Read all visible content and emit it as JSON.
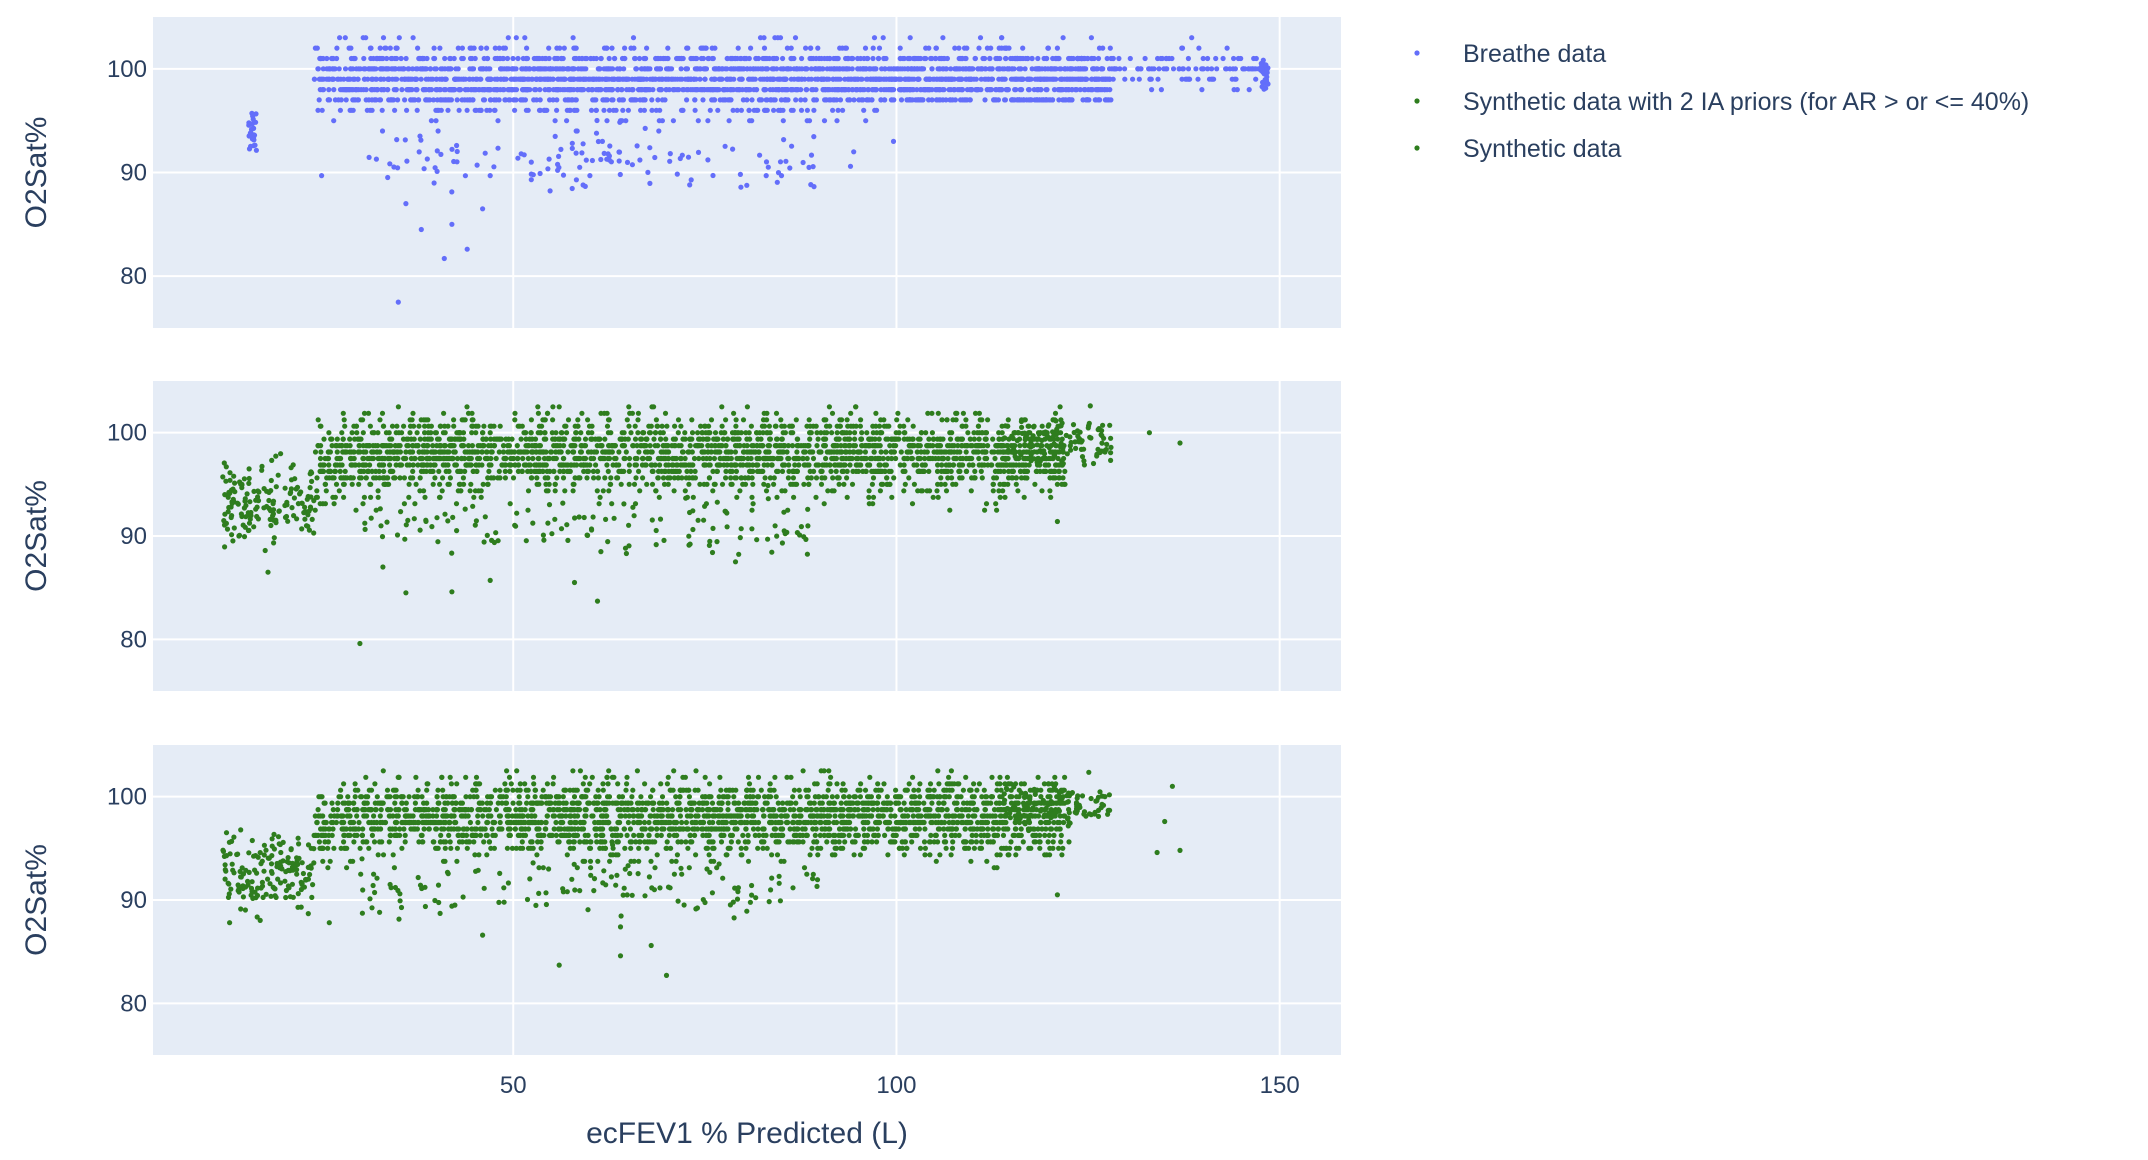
{
  "chart_data": {
    "type": "scatter",
    "subplots": 3,
    "shared_x": true,
    "xlabel": "ecFEV1 % Predicted (L)",
    "xlim": [
      3,
      158
    ],
    "xticks": [
      50,
      100,
      150
    ],
    "ylabel": "O2Sat%",
    "ylim": [
      75,
      105
    ],
    "yticks": [
      80,
      90,
      100
    ],
    "grid": true,
    "legend": {
      "placement": "top-right outside"
    },
    "colors": {
      "breathe": "#636efa",
      "synthetic": "#2e7d1e",
      "plot_bg": "#e5ecf6"
    },
    "series": [
      {
        "name": "Breathe data",
        "subplot": 1,
        "color": "#636efa",
        "x_range": [
          15,
          150
        ],
        "y_range": [
          77.5,
          103
        ],
        "core": {
          "x": [
            24,
            128
          ],
          "y": [
            92,
            102
          ]
        },
        "clusters": [
          {
            "x": 16,
            "y": [
              92,
              96
            ]
          },
          {
            "x": 148,
            "y": [
              98,
              101
            ]
          }
        ],
        "outliers": [
          [
            35,
            77.5
          ],
          [
            41,
            81.7
          ],
          [
            44,
            82.6
          ],
          [
            38,
            84.5
          ],
          [
            42,
            85
          ],
          [
            46,
            86.5
          ],
          [
            36,
            87
          ],
          [
            47,
            89.7
          ],
          [
            25,
            89.7
          ],
          [
            60,
            89.7
          ],
          [
            83,
            89.7
          ],
          [
            85,
            89.7
          ],
          [
            94,
            90.6
          ]
        ]
      },
      {
        "name": "Synthetic data with 2 IA priors (for AR > or <= 40%)",
        "subplot": 2,
        "color": "#2e7d1e",
        "x_range": [
          12,
          137
        ],
        "y_range": [
          79.6,
          103
        ],
        "core": {
          "x": [
            24,
            122
          ],
          "y": [
            92,
            102
          ]
        },
        "outliers": [
          [
            30,
            79.6
          ],
          [
            36,
            84.5
          ],
          [
            42,
            84.6
          ],
          [
            61,
            83.7
          ],
          [
            58,
            85.5
          ],
          [
            47,
            85.7
          ],
          [
            18,
            86.5
          ],
          [
            33,
            87
          ],
          [
            79,
            87.5
          ],
          [
            76,
            88.4
          ],
          [
            121,
            91.4
          ],
          [
            133,
            100
          ],
          [
            137,
            99
          ]
        ]
      },
      {
        "name": "Synthetic data",
        "subplot": 3,
        "color": "#2e7d1e",
        "x_range": [
          12,
          137
        ],
        "y_range": [
          82.7,
          103
        ],
        "core": {
          "x": [
            24,
            122
          ],
          "y": [
            92,
            102
          ]
        },
        "outliers": [
          [
            70,
            82.7
          ],
          [
            56,
            83.7
          ],
          [
            64,
            84.6
          ],
          [
            68,
            85.6
          ],
          [
            46,
            86.6
          ],
          [
            64,
            87.4
          ],
          [
            13,
            87.8
          ],
          [
            26,
            87.8
          ],
          [
            121,
            90.5
          ],
          [
            134,
            94.6
          ],
          [
            137,
            94.8
          ],
          [
            135,
            97.6
          ],
          [
            136,
            101
          ]
        ]
      }
    ]
  }
}
